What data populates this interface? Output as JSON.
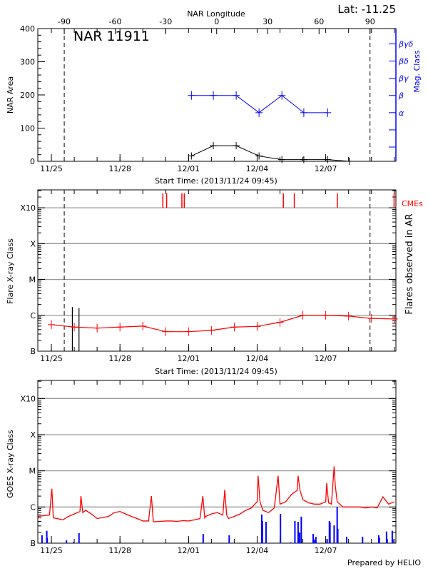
{
  "colors": {
    "area": "#000000",
    "mag_class": "#0000ff",
    "flare": "#ff0000",
    "cme": "#ff0000",
    "goes": "#ff0000",
    "goes_events": "#0000ff",
    "grid": "#999999"
  },
  "footer": "Prepared by HELIO",
  "chart_data": [
    {
      "type": "line",
      "title": "NAR 11911",
      "lat_label": "Lat: -11.25",
      "top_axis_label": "NAR Longitude",
      "xlabel": "Start Time: (2013/11/24 09:45)",
      "ylabel": "NAR Area",
      "y2label": "Mag. Class",
      "xlim": [
        "2013-11-24T09:45",
        "2013-12-10T01:40"
      ],
      "ylim": [
        0,
        400
      ],
      "yticks": [
        0,
        100,
        200,
        300,
        400
      ],
      "date_ticks": [
        {
          "label": "11/25",
          "time": "2013-11-25T00:00"
        },
        {
          "label": "11/28",
          "time": "2013-11-28T00:00"
        },
        {
          "label": "12/01",
          "time": "2013-12-01T00:00"
        },
        {
          "label": "12/04",
          "time": "2013-12-04T00:00"
        },
        {
          "label": "12/07",
          "time": "2013-12-07T00:00"
        }
      ],
      "longitude_ticks": [
        {
          "label": "-90",
          "time": "2013-11-25T13:30"
        },
        {
          "label": "-60",
          "time": "2013-11-27T19:00"
        },
        {
          "label": "-30",
          "time": "2013-11-30T00:00"
        },
        {
          "label": "0",
          "time": "2013-12-02T05:30"
        },
        {
          "label": "30",
          "time": "2013-12-04T11:00"
        },
        {
          "label": "60",
          "time": "2013-12-06T17:00"
        },
        {
          "label": "90",
          "time": "2013-12-08T22:30"
        }
      ],
      "limb_lines": [
        "2013-11-25T13:30",
        "2013-12-08T22:30"
      ],
      "mag_class_ticks": [
        "",
        "",
        "α",
        "β",
        "βγ",
        "βδ",
        "βγδ"
      ],
      "series": [
        {
          "key": "area",
          "x": [
            "2013-12-01T03:00",
            "2013-12-02T02:00",
            "2013-12-03T02:00",
            "2013-12-04T02:00",
            "2013-12-05T02:00",
            "2013-12-06T01:00",
            "2013-12-07T02:00",
            "2013-12-08T01:00"
          ],
          "y": [
            16,
            47,
            47,
            16,
            5,
            5,
            5,
            0
          ]
        },
        {
          "key": "mag_class",
          "x": [
            "2013-12-01T03:00",
            "2013-12-02T02:00",
            "2013-12-03T02:00",
            "2013-12-04T02:00",
            "2013-12-05T02:00",
            "2013-12-06T01:00",
            "2013-12-07T02:00"
          ],
          "y": [
            "β",
            "β",
            "β",
            "α",
            "β",
            "α",
            "α"
          ]
        }
      ]
    },
    {
      "type": "line",
      "xlabel": "Start Time: (2013/11/24 09:45)",
      "ylabel": "Flare X-ray Class",
      "y2label": "Flares observed in AR",
      "cme_label": "CMEs",
      "yscale": "log",
      "ylim": [
        1e-07,
        0.00316
      ],
      "yticks": [
        {
          "label": "B",
          "value": 1e-07
        },
        {
          "label": "C",
          "value": 1e-06
        },
        {
          "label": "M",
          "value": 1e-05
        },
        {
          "label": "X",
          "value": 0.0001
        },
        {
          "label": "X10",
          "value": 0.001
        }
      ],
      "grid": true,
      "limb_lines": [
        "2013-11-25T13:30",
        "2013-12-08T22:30"
      ],
      "series": [
        {
          "key": "flare_class",
          "x": [
            "2013-11-25T00:00",
            "2013-11-26T00:00",
            "2013-11-27T00:00",
            "2013-11-28T00:00",
            "2013-11-29T00:00",
            "2013-11-30T00:00",
            "2013-12-01T00:00",
            "2013-12-02T00:00",
            "2013-12-03T00:00",
            "2013-12-04T00:00",
            "2013-12-05T00:00",
            "2013-12-06T00:00",
            "2013-12-07T00:00",
            "2013-12-08T00:00",
            "2013-12-09T00:00",
            "2013-12-10T00:00"
          ],
          "y": [
            5.5e-07,
            4.7e-07,
            4.4e-07,
            4.7e-07,
            5e-07,
            3.5e-07,
            3.5e-07,
            3.8e-07,
            4.7e-07,
            4.9e-07,
            6.4e-07,
            1e-06,
            1e-06,
            9.5e-07,
            8.2e-07,
            7.9e-07
          ]
        }
      ],
      "ar_flares": [
        {
          "time": "2013-11-25T22:00",
          "peak": 1.7e-06
        },
        {
          "time": "2013-11-26T05:00",
          "peak": 1.6e-06
        }
      ],
      "cmes": [
        "2013-11-29T21:00",
        "2013-11-30T01:00",
        "2013-11-30T17:00",
        "2013-11-30T19:30",
        "2013-12-05T03:30",
        "2013-12-05T15:00",
        "2013-12-07T12:15",
        "2013-12-09T23:45"
      ]
    },
    {
      "type": "line",
      "ylabel": "GOES X-ray Class",
      "yscale": "log",
      "ylim": [
        1e-07,
        0.00316
      ],
      "yticks": [
        {
          "label": "B",
          "value": 1e-07
        },
        {
          "label": "C",
          "value": 1e-06
        },
        {
          "label": "M",
          "value": 1e-05
        },
        {
          "label": "X",
          "value": 0.0001
        },
        {
          "label": "X10",
          "value": 0.001
        }
      ],
      "grid": true,
      "series": [
        {
          "key": "goes_flux",
          "points": [
            [
              "2013-11-24T10:00",
              5.5e-07
            ],
            [
              "2013-11-24T22:00",
              6e-07
            ],
            [
              "2013-11-25T00:30",
              3.2e-06
            ],
            [
              "2013-11-25T02:00",
              5e-07
            ],
            [
              "2013-11-25T06:00",
              4.8e-07
            ],
            [
              "2013-11-25T12:00",
              4.4e-07
            ],
            [
              "2013-11-25T18:00",
              5.5e-07
            ],
            [
              "2013-11-26T00:00",
              6.4e-07
            ],
            [
              "2013-11-26T06:00",
              7.5e-07
            ],
            [
              "2013-11-26T07:00",
              2e-06
            ],
            [
              "2013-11-26T09:00",
              7e-07
            ],
            [
              "2013-11-26T12:00",
              8.1e-07
            ],
            [
              "2013-11-26T18:00",
              6.4e-07
            ],
            [
              "2013-11-27T00:00",
              4.8e-07
            ],
            [
              "2013-11-27T06:00",
              5.1e-07
            ],
            [
              "2013-11-27T12:00",
              5.5e-07
            ],
            [
              "2013-11-27T18:00",
              7e-07
            ],
            [
              "2013-11-28T00:00",
              7.5e-07
            ],
            [
              "2013-11-28T06:00",
              6.4e-07
            ],
            [
              "2013-11-28T12:00",
              5.5e-07
            ],
            [
              "2013-11-28T18:00",
              4.8e-07
            ],
            [
              "2013-11-29T00:00",
              4.1e-07
            ],
            [
              "2013-11-29T06:00",
              4.1e-07
            ],
            [
              "2013-11-29T09:00",
              2e-06
            ],
            [
              "2013-11-29T11:00",
              4e-07
            ],
            [
              "2013-11-29T12:00",
              3.9e-07
            ],
            [
              "2013-11-29T18:00",
              4e-07
            ],
            [
              "2013-11-30T00:00",
              4.1e-07
            ],
            [
              "2013-11-30T06:00",
              4.1e-07
            ],
            [
              "2013-11-30T12:00",
              4e-07
            ],
            [
              "2013-11-30T18:00",
              4.2e-07
            ],
            [
              "2013-12-01T00:00",
              4.1e-07
            ],
            [
              "2013-12-01T06:00",
              4.4e-07
            ],
            [
              "2013-12-01T12:00",
              4.8e-07
            ],
            [
              "2013-12-01T15:00",
              2e-06
            ],
            [
              "2013-12-01T17:00",
              5e-07
            ],
            [
              "2013-12-01T18:00",
              5.5e-07
            ],
            [
              "2013-12-02T00:00",
              6.4e-07
            ],
            [
              "2013-12-02T06:00",
              7e-07
            ],
            [
              "2013-12-02T12:00",
              6e-07
            ],
            [
              "2013-12-02T14:00",
              3e-06
            ],
            [
              "2013-12-02T16:00",
              6e-07
            ],
            [
              "2013-12-02T18:00",
              4.8e-07
            ],
            [
              "2013-12-03T00:00",
              5.5e-07
            ],
            [
              "2013-12-03T06:00",
              6.4e-07
            ],
            [
              "2013-12-03T12:00",
              8.1e-07
            ],
            [
              "2013-12-03T18:00",
              9.4e-07
            ],
            [
              "2013-12-04T00:00",
              1.4e-06
            ],
            [
              "2013-12-04T01:00",
              7.3e-06
            ],
            [
              "2013-12-04T03:00",
              1.4e-06
            ],
            [
              "2013-12-04T06:00",
              8.1e-07
            ],
            [
              "2013-12-04T12:00",
              7e-07
            ],
            [
              "2013-12-04T18:00",
              9.4e-07
            ],
            [
              "2013-12-04T22:00",
              7.3e-06
            ],
            [
              "2013-12-05T00:00",
              1.2e-06
            ],
            [
              "2013-12-05T06:00",
              1.4e-06
            ],
            [
              "2013-12-05T12:00",
              2.2e-06
            ],
            [
              "2013-12-05T18:00",
              2.9e-06
            ],
            [
              "2013-12-05T19:00",
              7.3e-06
            ],
            [
              "2013-12-05T21:00",
              2.9e-06
            ],
            [
              "2013-12-06T00:00",
              1.6e-06
            ],
            [
              "2013-12-06T06:00",
              1.3e-06
            ],
            [
              "2013-12-06T12:00",
              1.2e-06
            ],
            [
              "2013-12-06T18:00",
              1.2e-06
            ],
            [
              "2013-12-07T00:00",
              1.4e-06
            ],
            [
              "2013-12-07T01:00",
              4.6e-06
            ],
            [
              "2013-12-07T03:00",
              1.3e-06
            ],
            [
              "2013-12-07T06:00",
              1.2e-06
            ],
            [
              "2013-12-07T08:50",
              1.33e-05
            ],
            [
              "2013-12-07T10:00",
              4e-06
            ],
            [
              "2013-12-07T12:00",
              1.4e-06
            ],
            [
              "2013-12-07T18:00",
              1e-06
            ],
            [
              "2013-12-08T00:00",
              1e-06
            ],
            [
              "2013-12-08T06:00",
              1e-06
            ],
            [
              "2013-12-08T12:00",
              1e-06
            ],
            [
              "2013-12-08T18:00",
              9.4e-07
            ],
            [
              "2013-12-09T00:00",
              1e-06
            ],
            [
              "2013-12-09T06:00",
              9.4e-07
            ],
            [
              "2013-12-09T12:00",
              1.9e-06
            ],
            [
              "2013-12-09T18:00",
              1.2e-06
            ],
            [
              "2013-12-10T00:00",
              1.4e-06
            ]
          ]
        }
      ],
      "events": [
        [
          "2013-11-24T14:10",
          1.65e-07
        ],
        [
          "2013-11-24T19:10",
          2.2e-07
        ],
        [
          "2013-11-24T19:40",
          1.4e-07
        ],
        [
          "2013-11-25T15:50",
          1.2e-07
        ],
        [
          "2013-11-25T23:30",
          1.1e-07
        ],
        [
          "2013-11-26T05:00",
          1.9e-07
        ],
        [
          "2013-12-01T15:20",
          1.8e-07
        ],
        [
          "2013-12-02T18:40",
          1.65e-07
        ],
        [
          "2013-12-04T04:50",
          6.2e-07
        ],
        [
          "2013-12-04T05:30",
          4.1e-07
        ],
        [
          "2013-12-04T09:20",
          3.9e-07
        ],
        [
          "2013-12-05T00:30",
          6.4e-07
        ],
        [
          "2013-12-05T11:20",
          1.05e-07
        ],
        [
          "2013-12-05T15:40",
          4.1e-07
        ],
        [
          "2013-12-05T19:00",
          3.9e-07
        ],
        [
          "2013-12-05T20:00",
          2e-07
        ],
        [
          "2013-12-05T20:40",
          1.9e-07
        ],
        [
          "2013-12-05T22:20",
          5.4e-07
        ],
        [
          "2013-12-06T10:50",
          1.8e-07
        ],
        [
          "2013-12-06T12:00",
          1.25e-07
        ],
        [
          "2013-12-06T13:40",
          1.5e-07
        ],
        [
          "2013-12-07T01:30",
          1.3e-07
        ],
        [
          "2013-12-07T03:50",
          4.1e-07
        ],
        [
          "2013-12-07T04:30",
          3.7e-07
        ],
        [
          "2013-12-07T08:50",
          3.1e-07
        ],
        [
          "2013-12-07T12:00",
          1e-06
        ],
        [
          "2013-12-07T12:40",
          2.5e-07
        ],
        [
          "2013-12-07T22:00",
          1.5e-07
        ],
        [
          "2013-12-08T14:40",
          1.5e-07
        ],
        [
          "2013-12-09T07:40",
          1.65e-07
        ],
        [
          "2013-12-09T08:20",
          1.4e-07
        ],
        [
          "2013-12-09T15:50",
          2.1e-07
        ],
        [
          "2013-12-09T16:30",
          1.3e-07
        ],
        [
          "2013-12-09T21:50",
          2.2e-07
        ],
        [
          "2013-12-09T22:30",
          1.3e-07
        ]
      ]
    }
  ]
}
